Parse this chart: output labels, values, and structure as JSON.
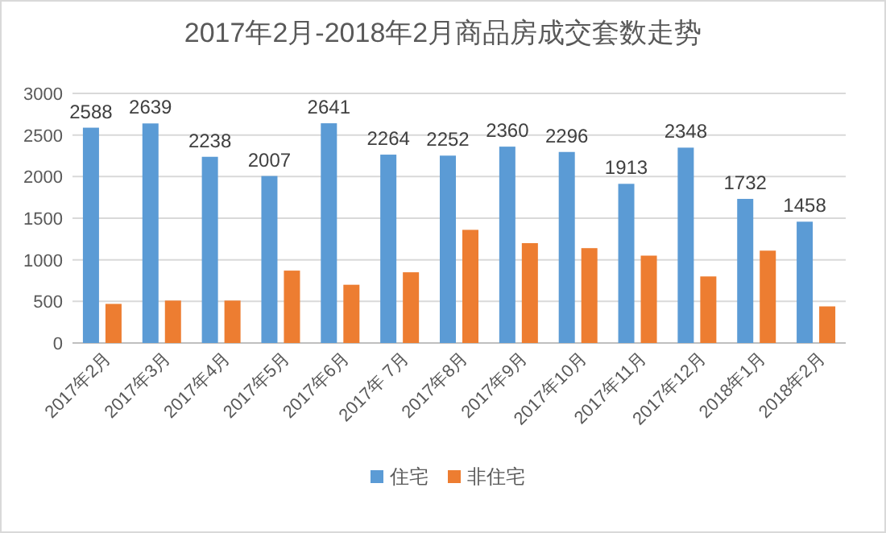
{
  "chart_data": {
    "type": "bar",
    "title": "2017年2月-2018年2月商品房成交套数走势",
    "categories": [
      "2017年2月",
      "2017年3月",
      "2017年4月",
      "2017年5月",
      "2017年6月",
      "2017年 7月",
      "2017年8月",
      "2017年9月",
      "2017年10月",
      "2017年11月",
      "2017年12月",
      "2018年1月",
      "2018年2月"
    ],
    "series": [
      {
        "name": "住宅",
        "color": "#5b9bd5",
        "values": [
          2588,
          2639,
          2238,
          2007,
          2641,
          2264,
          2252,
          2360,
          2296,
          1913,
          2348,
          1732,
          1458
        ],
        "value_labels": [
          "2588",
          "2639",
          "2238",
          "2007",
          "2641",
          "2264",
          "2252",
          "2360",
          "2296",
          "1913",
          "2348",
          "1732",
          "1458"
        ]
      },
      {
        "name": "非住宅",
        "color": "#ed7d31",
        "values": [
          470,
          510,
          510,
          870,
          700,
          850,
          1360,
          1200,
          1140,
          1050,
          800,
          1110,
          440
        ]
      }
    ],
    "ylim": [
      0,
      3000
    ],
    "yticks": [
      0,
      500,
      1000,
      1500,
      2000,
      2500,
      3000
    ],
    "grid": "y",
    "legend": "bottom"
  }
}
